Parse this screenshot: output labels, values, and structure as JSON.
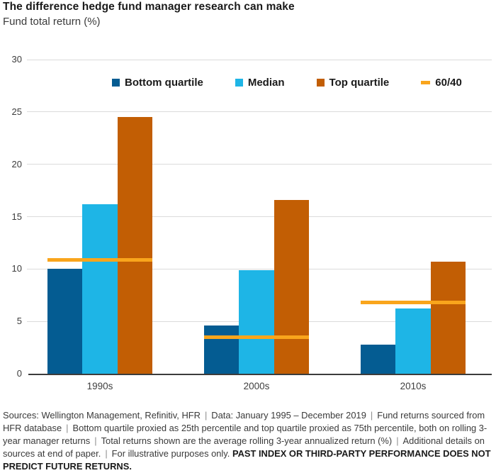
{
  "chart_data": {
    "type": "bar",
    "title": "The difference hedge fund manager research can make",
    "subtitle": "Fund total return (%)",
    "categories": [
      "1990s",
      "2000s",
      "2010s"
    ],
    "series": [
      {
        "name": "Bottom quartile",
        "color": "#045c92",
        "values": [
          10.0,
          4.6,
          2.8
        ]
      },
      {
        "name": "Median",
        "color": "#1eb5e6",
        "values": [
          16.2,
          9.9,
          6.2
        ]
      },
      {
        "name": "Top quartile",
        "color": "#c25e04",
        "values": [
          24.5,
          16.6,
          10.7
        ]
      }
    ],
    "line_series": {
      "name": "60/40",
      "color": "#f9a51c",
      "values": [
        10.9,
        3.5,
        6.8
      ]
    },
    "ylim": [
      0,
      30
    ],
    "yticks": [
      0,
      5,
      10,
      15,
      20,
      25,
      30
    ],
    "grid": true,
    "legend_position": "top",
    "axis_color": "#3c3c3c",
    "gridline_color": "#dbdbdb"
  },
  "footer": {
    "segments": [
      "Sources: Wellington Management, Refinitiv, HFR",
      "Data: January 1995 – December 2019",
      "Fund returns sourced from HFR database",
      "Bottom quartile proxied as 25th percentile and top quartile proxied as 75th percentile, both on rolling 3-year manager returns",
      "Total returns shown are the average rolling 3-year annualized return (%)",
      "Additional details on sources at end of paper.",
      "For illustrative purposes only."
    ],
    "emphasis": "PAST INDEX OR THIRD-PARTY PERFORMANCE DOES NOT PREDICT FUTURE RETURNS."
  }
}
